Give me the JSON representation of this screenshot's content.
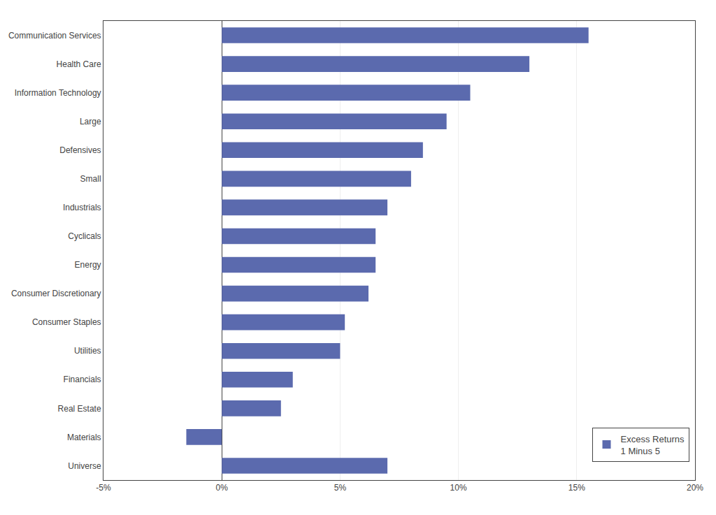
{
  "chart_data": {
    "type": "bar",
    "orientation": "horizontal",
    "categories": [
      "Universe",
      "Materials",
      "Real Estate",
      "Financials",
      "Utilities",
      "Consumer Staples",
      "Consumer Discretionary",
      "Energy",
      "Cyclicals",
      "Industrials",
      "Small",
      "Defensives",
      "Large",
      "Information Technology",
      "Health Care",
      "Communication Services"
    ],
    "series": [
      {
        "name": "Excess Returns\n1 Minus 5",
        "color": "#5b6aae",
        "values": [
          7.0,
          -1.5,
          2.5,
          3.0,
          5.0,
          5.2,
          6.2,
          6.5,
          6.5,
          7.0,
          8.0,
          8.5,
          9.5,
          10.5,
          13.0,
          15.5
        ]
      }
    ],
    "xlim": [
      -5,
      20
    ],
    "xticks": [
      {
        "value": -5,
        "label": "-5%"
      },
      {
        "value": 0,
        "label": "0%"
      },
      {
        "value": 5,
        "label": "5%"
      },
      {
        "value": 10,
        "label": "10%"
      },
      {
        "value": 15,
        "label": "15%"
      },
      {
        "value": 20,
        "label": "20%"
      }
    ],
    "grid": true,
    "legend": "lower right"
  }
}
